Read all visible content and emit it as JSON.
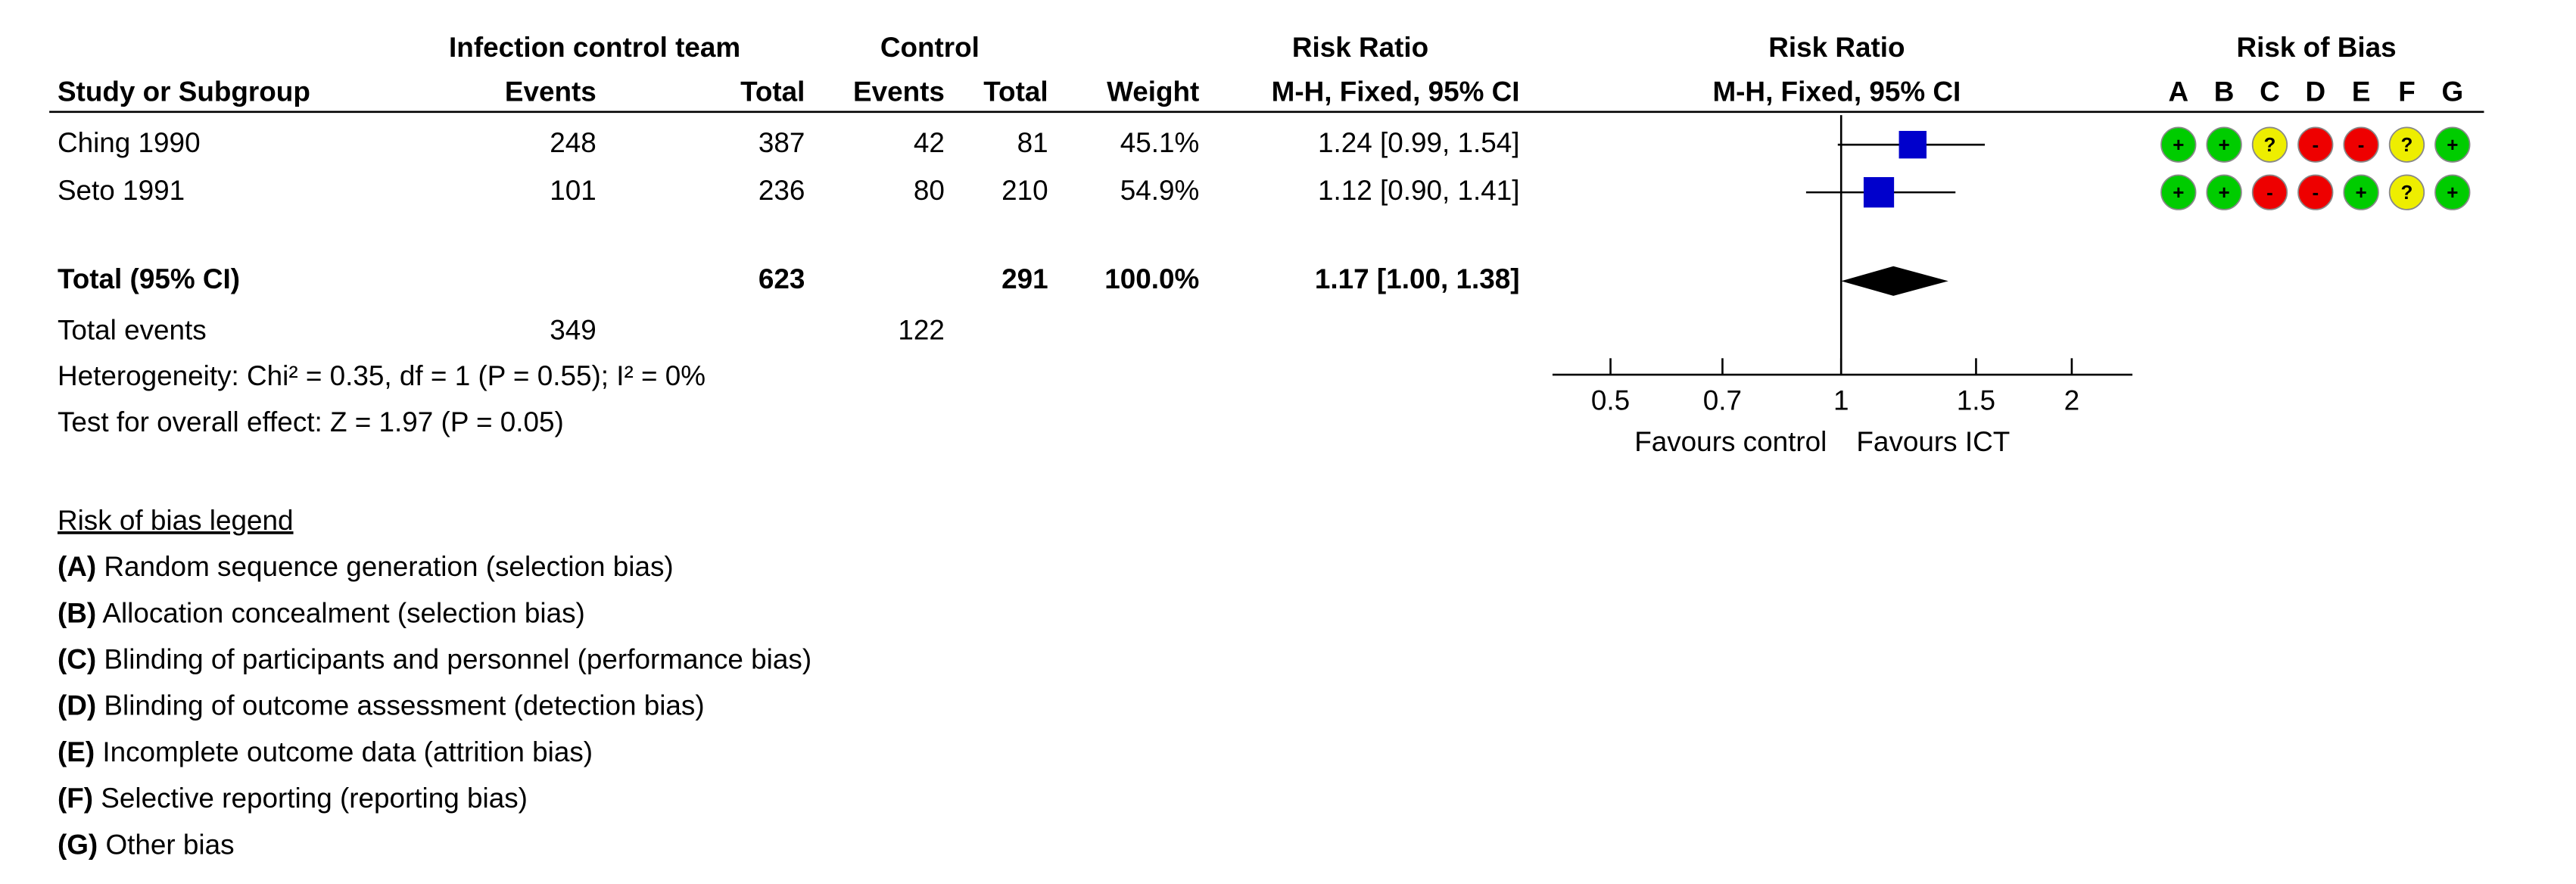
{
  "chart_data": {
    "type": "forest",
    "headers": {
      "group_1": "Infection control team",
      "group_2": "Control",
      "effect_title": "Risk Ratio",
      "plot_title": "Risk Ratio",
      "bias_title": "Risk of Bias",
      "study_col": "Study or Subgroup",
      "events_1": "Events",
      "total_1": "Total",
      "events_2": "Events",
      "total_2": "Total",
      "weight": "Weight",
      "effect_method": "M-H, Fixed, 95% CI",
      "plot_method": "M-H, Fixed, 95% CI"
    },
    "studies": [
      {
        "name": "Ching 1990",
        "events_1": 248,
        "total_1": 387,
        "events_2": 42,
        "total_2": 81,
        "weight": 45.1,
        "weight_label": "45.1%",
        "rr": 1.24,
        "ci_low": 0.99,
        "ci_high": 1.54,
        "value_label": "1.24 [0.99, 1.54]",
        "bias": [
          "+",
          "+",
          "?",
          "-",
          "-",
          "?",
          "+"
        ]
      },
      {
        "name": "Seto 1991",
        "events_1": 101,
        "total_1": 236,
        "events_2": 80,
        "total_2": 210,
        "weight": 54.9,
        "weight_label": "54.9%",
        "rr": 1.12,
        "ci_low": 0.9,
        "ci_high": 1.41,
        "value_label": "1.12 [0.90, 1.41]",
        "bias": [
          "+",
          "+",
          "-",
          "-",
          "+",
          "?",
          "+"
        ]
      }
    ],
    "total": {
      "name": "Total (95% CI)",
      "total_1": 623,
      "total_2": 291,
      "weight": 100.0,
      "weight_label": "100.0%",
      "rr": 1.17,
      "ci_low": 1.0,
      "ci_high": 1.38,
      "value_label": "1.17 [1.00, 1.38]"
    },
    "total_events": {
      "label": "Total events",
      "events_1": 349,
      "events_2": 122
    },
    "heterogeneity": "Heterogeneity: Chi² = 0.35, df = 1 (P = 0.55); I² = 0%",
    "overall_effect": "Test for overall effect: Z = 1.97 (P = 0.05)",
    "xlim": [
      0.42,
      2.4
    ],
    "xticks": [
      0.5,
      0.7,
      1,
      1.5,
      2
    ],
    "log_scale": true,
    "xlabel_left": "Favours control",
    "xlabel_right": "Favours ICT",
    "marker_color": "#0000cc",
    "diamond_color": "#000000",
    "bias_domains": [
      "A",
      "B",
      "C",
      "D",
      "E",
      "F",
      "G"
    ],
    "bias_colors": {
      "+": "#00cc00",
      "-": "#ee0000",
      "?": "#eeee00"
    }
  },
  "legend": {
    "title": "Risk of bias legend",
    "items": [
      {
        "key": "(A)",
        "text": " Random sequence generation (selection bias)"
      },
      {
        "key": "(B)",
        "text": " Allocation concealment (selection bias)"
      },
      {
        "key": "(C)",
        "text": " Blinding of participants and personnel (performance bias)"
      },
      {
        "key": "(D)",
        "text": " Blinding of outcome assessment (detection bias)"
      },
      {
        "key": "(E)",
        "text": " Incomplete outcome data (attrition bias)"
      },
      {
        "key": "(F)",
        "text": " Selective reporting (reporting bias)"
      },
      {
        "key": "(G)",
        "text": " Other bias"
      }
    ]
  }
}
